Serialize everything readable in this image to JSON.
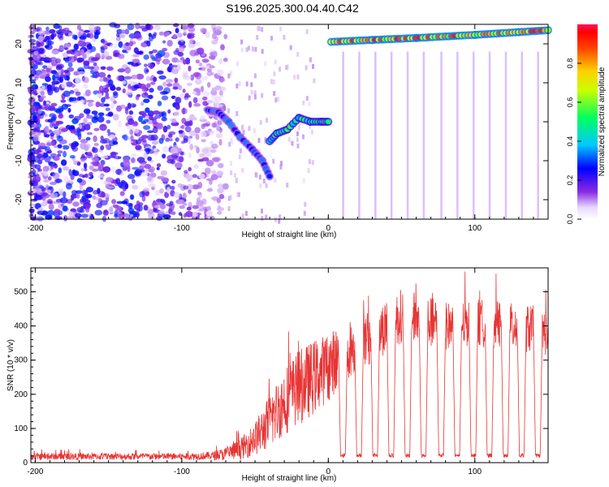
{
  "title": "S196.2025.300.04.40.C42",
  "colors": {
    "trace": "#e83434",
    "axis": "#000000",
    "background": "#ffffff"
  },
  "chart_data": [
    {
      "type": "heatmap",
      "title": "S196.2025.300.04.40.C42",
      "xlabel": "Height of straight line (km)",
      "ylabel": "Frequency (Hz)",
      "xlim": [
        -203,
        150
      ],
      "ylim": [
        -25,
        25
      ],
      "xticks": [
        -200,
        -100,
        0,
        100
      ],
      "xticklabels": [
        "-200",
        "-100",
        "0",
        "100"
      ],
      "yticks": [
        -20,
        -10,
        0,
        10,
        20
      ],
      "yticklabels": [
        "-20",
        "-10",
        "0",
        "10",
        "20"
      ],
      "colorbar": {
        "label": "Normalized spectral amplitude",
        "range": [
          0.0,
          1.0
        ],
        "ticks": [
          0.0,
          0.2,
          0.4,
          0.6,
          0.8
        ],
        "ticklabels": [
          "0.0",
          "0.2",
          "0.4",
          "0.6",
          "0.8"
        ],
        "colormap": "rainbow"
      },
      "noise_region": {
        "x_range": [
          -203,
          -70
        ],
        "y_range": [
          -25,
          25
        ],
        "amplitude_range": [
          0.05,
          0.3
        ]
      },
      "ridges": [
        {
          "name": "descending trace",
          "points": [
            [
              -82,
              3
            ],
            [
              -75,
              2.5
            ],
            [
              -68,
              0
            ],
            [
              -60,
              -4
            ],
            [
              -52,
              -7
            ],
            [
              -45,
              -10
            ],
            [
              -40,
              -14
            ]
          ],
          "amplitude": 0.35
        },
        {
          "name": "rising trace",
          "points": [
            [
              -40,
              -5
            ],
            [
              -35,
              -3
            ],
            [
              -28,
              -2
            ],
            [
              -20,
              1
            ],
            [
              -12,
              0
            ],
            [
              -5,
              0
            ],
            [
              0,
              0
            ]
          ],
          "amplitude": 0.6
        },
        {
          "name": "carrier line",
          "points": [
            [
              2,
              20.5
            ],
            [
              30,
              21
            ],
            [
              60,
              21.5
            ],
            [
              100,
              22.3
            ],
            [
              130,
              23
            ],
            [
              150,
              23.5
            ]
          ],
          "amplitude": 0.95
        }
      ]
    },
    {
      "type": "line",
      "title": "",
      "xlabel": "Height of straight line (km)",
      "ylabel": "SNR (10 * v/v)",
      "xlim": [
        -203,
        150
      ],
      "ylim": [
        0,
        570
      ],
      "xticks": [
        -200,
        -100,
        0,
        100
      ],
      "xticklabels": [
        "-200",
        "-100",
        "0",
        "100"
      ],
      "yticks": [
        0,
        100,
        200,
        300,
        400,
        500
      ],
      "yticklabels": [
        "0",
        "100",
        "200",
        "300",
        "400",
        "500"
      ],
      "series": [
        {
          "name": "SNR",
          "color": "#e83434",
          "envelope": {
            "x": [
              -203,
              -100,
              -80,
              -70,
              -60,
              -50,
              -40,
              -30,
              -20,
              -10,
              0,
              10,
              20,
              30,
              40,
              50,
              60,
              80,
              100,
              120,
              140,
              150
            ],
            "mean": [
              18,
              18,
              20,
              25,
              40,
              70,
              120,
              180,
              220,
              250,
              280,
              320,
              350,
              370,
              400,
              430,
              420,
              400,
              410,
              400,
              390,
              380
            ],
            "spread": [
              10,
              10,
              12,
              20,
              30,
              50,
              80,
              100,
              110,
              110,
              100,
              90,
              80,
              80,
              80,
              80,
              80,
              70,
              70,
              70,
              70,
              70
            ]
          },
          "dips_x": [
            10,
            21,
            32,
            43,
            54,
            65,
            77,
            88,
            99,
            110,
            121,
            132,
            143
          ],
          "dip_value": 15
        }
      ]
    }
  ]
}
